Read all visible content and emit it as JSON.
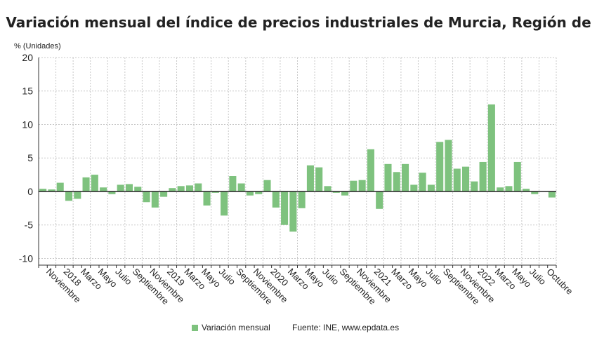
{
  "chart_data": {
    "type": "bar",
    "title": "Variación mensual del índice de precios industriales de Murcia, Región de",
    "ylabel": "% (Unidades)",
    "ylim": [
      -11,
      20
    ],
    "yticks": [
      20,
      15,
      10,
      5,
      0,
      -5,
      -10
    ],
    "grid": true,
    "legend_position": "bottom",
    "bar_color": "#7ec27e",
    "x_tick_labels": [
      "Noviembre",
      "2018",
      "Marzo",
      "Mayo",
      "Julio",
      "Septiembre",
      "Noviembre",
      "2019",
      "Marzo",
      "Mayo",
      "Julio",
      "Septiembre",
      "Noviembre",
      "2020",
      "Marzo",
      "Mayo",
      "Julio",
      "Septiembre",
      "Noviembre",
      "2021",
      "Marzo",
      "Mayo",
      "Julio",
      "Septiembre",
      "Noviembre",
      "2022",
      "Marzo",
      "Mayo",
      "Julio",
      "Octubre"
    ],
    "series": [
      {
        "name": "Variación mensual",
        "values": [
          0.4,
          0.3,
          1.3,
          -1.4,
          -1.1,
          2.1,
          2.5,
          0.6,
          -0.4,
          1.0,
          1.1,
          0.7,
          -1.6,
          -2.4,
          -0.8,
          0.5,
          0.8,
          0.9,
          1.2,
          -2.1,
          -0.2,
          -3.6,
          2.3,
          1.2,
          -0.6,
          -0.4,
          1.7,
          -2.4,
          -5.0,
          -6.0,
          -2.5,
          3.9,
          3.6,
          0.8,
          -0.2,
          -0.6,
          1.6,
          1.7,
          6.3,
          -2.6,
          4.1,
          2.9,
          4.1,
          1.0,
          2.8,
          1.0,
          7.4,
          7.7,
          3.4,
          3.7,
          1.5,
          4.4,
          13.0,
          0.6,
          0.8,
          4.4,
          0.4,
          -0.4,
          0.0,
          -0.9
        ]
      }
    ]
  },
  "footer": {
    "legend_label": "Variación mensual",
    "source": "Fuente: INE, www.epdata.es"
  }
}
